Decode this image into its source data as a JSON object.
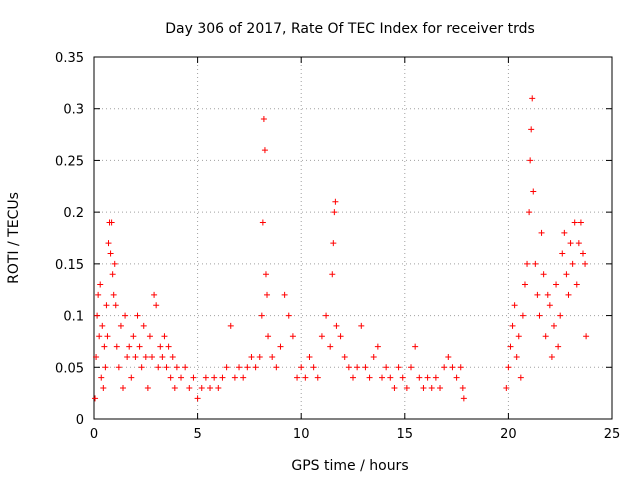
{
  "chart_data": {
    "type": "scatter",
    "title": "Day 306 of 2017, Rate Of TEC Index for receiver trds",
    "xlabel": "GPS time / hours",
    "ylabel": "ROTI / TECUs",
    "xlim": [
      0,
      25
    ],
    "ylim": [
      0,
      0.35
    ],
    "xticks": [
      0,
      5,
      10,
      15,
      20,
      25
    ],
    "xtick_labels": [
      "0",
      "5",
      "10",
      "15",
      "20",
      "25"
    ],
    "yticks": [
      0,
      0.05,
      0.1,
      0.15,
      0.2,
      0.25,
      0.3,
      0.35
    ],
    "ytick_labels": [
      "0",
      "0.05",
      "0.1",
      "0.15",
      "0.2",
      "0.25",
      "0.3",
      "0.35"
    ],
    "grid": true,
    "marker": "+",
    "color": "#ff0000",
    "series": [
      {
        "points": [
          [
            0.05,
            0.02
          ],
          [
            0.1,
            0.06
          ],
          [
            0.15,
            0.1
          ],
          [
            0.2,
            0.12
          ],
          [
            0.25,
            0.08
          ],
          [
            0.3,
            0.13
          ],
          [
            0.35,
            0.04
          ],
          [
            0.4,
            0.09
          ],
          [
            0.45,
            0.03
          ],
          [
            0.5,
            0.07
          ],
          [
            0.55,
            0.05
          ],
          [
            0.6,
            0.11
          ],
          [
            0.65,
            0.08
          ],
          [
            0.7,
            0.17
          ],
          [
            0.75,
            0.19
          ],
          [
            0.8,
            0.16
          ],
          [
            0.85,
            0.19
          ],
          [
            0.9,
            0.14
          ],
          [
            0.95,
            0.12
          ],
          [
            1.0,
            0.15
          ],
          [
            1.05,
            0.11
          ],
          [
            1.1,
            0.07
          ],
          [
            1.2,
            0.05
          ],
          [
            1.3,
            0.09
          ],
          [
            1.4,
            0.03
          ],
          [
            1.5,
            0.1
          ],
          [
            1.6,
            0.06
          ],
          [
            1.7,
            0.07
          ],
          [
            1.8,
            0.04
          ],
          [
            1.9,
            0.08
          ],
          [
            2.0,
            0.06
          ],
          [
            2.1,
            0.1
          ],
          [
            2.2,
            0.07
          ],
          [
            2.3,
            0.05
          ],
          [
            2.4,
            0.09
          ],
          [
            2.5,
            0.06
          ],
          [
            2.6,
            0.03
          ],
          [
            2.7,
            0.08
          ],
          [
            2.8,
            0.06
          ],
          [
            2.9,
            0.12
          ],
          [
            3.0,
            0.11
          ],
          [
            3.1,
            0.05
          ],
          [
            3.2,
            0.07
          ],
          [
            3.3,
            0.06
          ],
          [
            3.4,
            0.08
          ],
          [
            3.5,
            0.05
          ],
          [
            3.6,
            0.07
          ],
          [
            3.7,
            0.04
          ],
          [
            3.8,
            0.06
          ],
          [
            3.9,
            0.03
          ],
          [
            4.0,
            0.05
          ],
          [
            4.2,
            0.04
          ],
          [
            4.4,
            0.05
          ],
          [
            4.6,
            0.03
          ],
          [
            4.8,
            0.04
          ],
          [
            5.0,
            0.02
          ],
          [
            5.2,
            0.03
          ],
          [
            5.4,
            0.04
          ],
          [
            5.6,
            0.03
          ],
          [
            5.8,
            0.04
          ],
          [
            6.0,
            0.03
          ],
          [
            6.2,
            0.04
          ],
          [
            6.4,
            0.05
          ],
          [
            6.6,
            0.09
          ],
          [
            6.8,
            0.04
          ],
          [
            7.0,
            0.05
          ],
          [
            7.2,
            0.04
          ],
          [
            7.4,
            0.05
          ],
          [
            7.6,
            0.06
          ],
          [
            7.8,
            0.05
          ],
          [
            8.0,
            0.06
          ],
          [
            8.1,
            0.1
          ],
          [
            8.15,
            0.19
          ],
          [
            8.2,
            0.29
          ],
          [
            8.25,
            0.26
          ],
          [
            8.3,
            0.14
          ],
          [
            8.35,
            0.12
          ],
          [
            8.4,
            0.08
          ],
          [
            8.6,
            0.06
          ],
          [
            8.8,
            0.05
          ],
          [
            9.0,
            0.07
          ],
          [
            9.2,
            0.12
          ],
          [
            9.4,
            0.1
          ],
          [
            9.6,
            0.08
          ],
          [
            9.8,
            0.04
          ],
          [
            10.0,
            0.05
          ],
          [
            10.2,
            0.04
          ],
          [
            10.4,
            0.06
          ],
          [
            10.6,
            0.05
          ],
          [
            10.8,
            0.04
          ],
          [
            11.0,
            0.08
          ],
          [
            11.2,
            0.1
          ],
          [
            11.4,
            0.07
          ],
          [
            11.5,
            0.14
          ],
          [
            11.55,
            0.17
          ],
          [
            11.6,
            0.2
          ],
          [
            11.65,
            0.21
          ],
          [
            11.7,
            0.09
          ],
          [
            11.9,
            0.08
          ],
          [
            12.1,
            0.06
          ],
          [
            12.3,
            0.05
          ],
          [
            12.5,
            0.04
          ],
          [
            12.7,
            0.05
          ],
          [
            12.9,
            0.09
          ],
          [
            13.1,
            0.05
          ],
          [
            13.3,
            0.04
          ],
          [
            13.5,
            0.06
          ],
          [
            13.7,
            0.07
          ],
          [
            13.9,
            0.04
          ],
          [
            14.1,
            0.05
          ],
          [
            14.3,
            0.04
          ],
          [
            14.5,
            0.03
          ],
          [
            14.7,
            0.05
          ],
          [
            14.9,
            0.04
          ],
          [
            15.1,
            0.03
          ],
          [
            15.3,
            0.05
          ],
          [
            15.5,
            0.07
          ],
          [
            15.7,
            0.04
          ],
          [
            15.9,
            0.03
          ],
          [
            16.1,
            0.04
          ],
          [
            16.3,
            0.03
          ],
          [
            16.5,
            0.04
          ],
          [
            16.7,
            0.03
          ],
          [
            16.9,
            0.05
          ],
          [
            17.1,
            0.06
          ],
          [
            17.3,
            0.05
          ],
          [
            17.5,
            0.04
          ],
          [
            17.7,
            0.05
          ],
          [
            17.8,
            0.03
          ],
          [
            17.85,
            0.02
          ],
          [
            19.9,
            0.03
          ],
          [
            20.0,
            0.05
          ],
          [
            20.1,
            0.07
          ],
          [
            20.2,
            0.09
          ],
          [
            20.3,
            0.11
          ],
          [
            20.4,
            0.06
          ],
          [
            20.5,
            0.08
          ],
          [
            20.6,
            0.04
          ],
          [
            20.7,
            0.1
          ],
          [
            20.8,
            0.13
          ],
          [
            20.9,
            0.15
          ],
          [
            21.0,
            0.2
          ],
          [
            21.05,
            0.25
          ],
          [
            21.1,
            0.28
          ],
          [
            21.15,
            0.31
          ],
          [
            21.2,
            0.22
          ],
          [
            21.3,
            0.15
          ],
          [
            21.4,
            0.12
          ],
          [
            21.5,
            0.1
          ],
          [
            21.6,
            0.18
          ],
          [
            21.7,
            0.14
          ],
          [
            21.8,
            0.08
          ],
          [
            21.9,
            0.12
          ],
          [
            22.0,
            0.11
          ],
          [
            22.1,
            0.06
          ],
          [
            22.2,
            0.09
          ],
          [
            22.3,
            0.13
          ],
          [
            22.4,
            0.07
          ],
          [
            22.5,
            0.1
          ],
          [
            22.6,
            0.16
          ],
          [
            22.7,
            0.18
          ],
          [
            22.8,
            0.14
          ],
          [
            22.9,
            0.12
          ],
          [
            23.0,
            0.17
          ],
          [
            23.1,
            0.15
          ],
          [
            23.2,
            0.19
          ],
          [
            23.3,
            0.13
          ],
          [
            23.4,
            0.17
          ],
          [
            23.5,
            0.19
          ],
          [
            23.6,
            0.16
          ],
          [
            23.7,
            0.15
          ],
          [
            23.75,
            0.08
          ]
        ]
      }
    ]
  }
}
